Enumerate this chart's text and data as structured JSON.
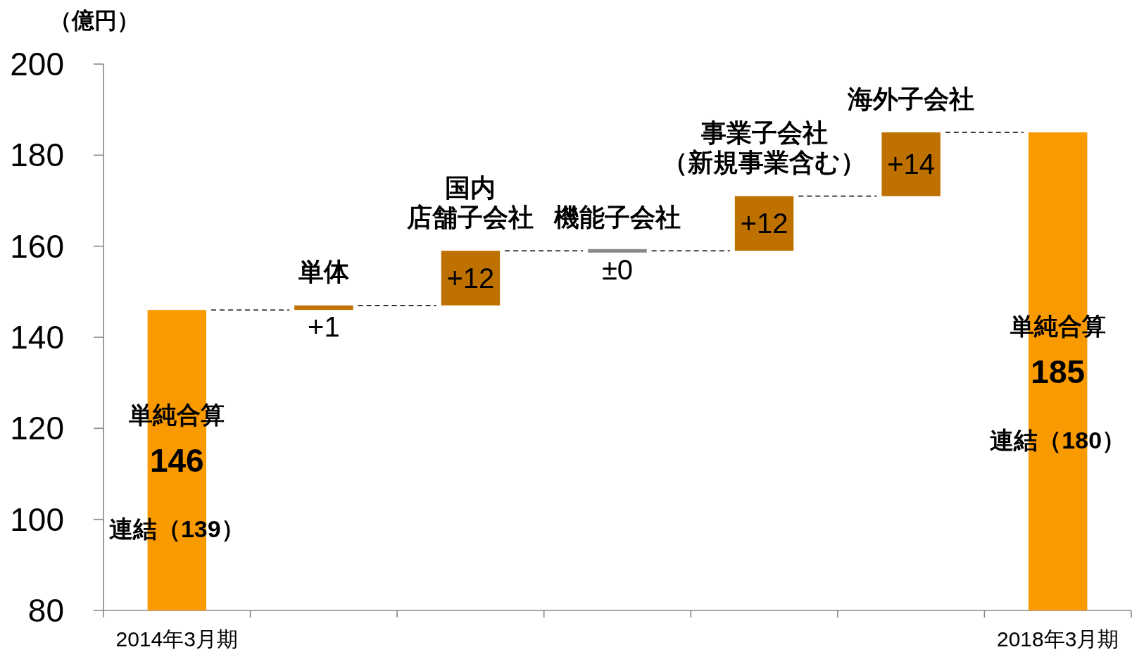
{
  "chart_data": {
    "type": "bar",
    "ylabel": "（億円）",
    "categories": [
      "2014年3月期",
      "単体",
      "国内店舗子会社",
      "機能子会社",
      "事業子会社（新規事業含む）",
      "海外子会社",
      "2018年3月期"
    ],
    "values": [
      146,
      1,
      12,
      0,
      12,
      14,
      185
    ],
    "base": [
      null,
      146,
      147,
      159,
      159,
      171,
      null
    ],
    "colors": [
      "#f99a00",
      "#bf7100",
      "#bf7100",
      "#898989",
      "#bf7100",
      "#bf7100",
      "#f99a00"
    ],
    "value_labels": [
      "146",
      "+1",
      "+12",
      "±0",
      "+12",
      "+14",
      "185"
    ],
    "ylim": [
      80,
      200
    ],
    "yticks": [
      80,
      100,
      120,
      140,
      160,
      180,
      200
    ],
    "annotations": [
      "単純合算",
      "連結（139）",
      "単純合算",
      "連結（180）"
    ]
  }
}
